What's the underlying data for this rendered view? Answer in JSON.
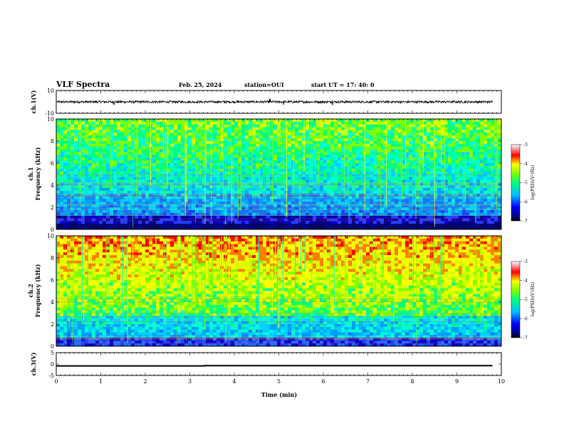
{
  "header": {
    "title": "VLF Spectra",
    "date": "Feb. 25, 2024",
    "station": "station=OUI",
    "start_ut": "start  UT  =   17: 40: 0"
  },
  "chart_data": [
    {
      "id": "ch1_waveform",
      "type": "line",
      "ylabel": "ch.1(V)",
      "xlim": [
        0,
        10
      ],
      "ylim": [
        -10,
        10
      ],
      "yticks": [
        "10",
        "-10"
      ],
      "signal": {
        "mean": 0,
        "amplitude_approx": 2,
        "x_end": 9.8,
        "spike_times": [
          1.3,
          4.8,
          5.1,
          6.2
        ]
      }
    },
    {
      "id": "ch1_spectrogram",
      "type": "heatmap",
      "ylabel": "ch.1\nFrequency (kHz)",
      "xlim": [
        0,
        10
      ],
      "ylim": [
        0,
        10
      ],
      "yticks": [
        "0",
        "2",
        "4",
        "6",
        "8",
        "10"
      ],
      "colorbar": {
        "label": "log(PSD)(V²/Hz)",
        "range": [
          -7,
          -3
        ],
        "ticks": [
          "-3",
          "-4",
          "-5",
          "-6",
          "-7"
        ]
      }
    },
    {
      "id": "ch2_spectrogram",
      "type": "heatmap",
      "ylabel": "ch.2\nFrequency (kHz)",
      "xlim": [
        0,
        10
      ],
      "ylim": [
        0,
        10
      ],
      "yticks": [
        "0",
        "2",
        "4",
        "6",
        "8",
        "10"
      ],
      "colorbar": {
        "label": "log(PSD)(V²/Hz)",
        "range": [
          -7,
          -3
        ],
        "ticks": [
          "-3",
          "-4",
          "-5",
          "-6",
          "-7"
        ]
      }
    },
    {
      "id": "ch3_level",
      "type": "line",
      "ylabel": "ch.3(V)",
      "xlim": [
        0,
        10
      ],
      "ylim": [
        -5,
        5
      ],
      "yticks": [
        "5",
        "0",
        "-5"
      ],
      "x": [
        0,
        3.33,
        3.33,
        9.8
      ],
      "y": [
        -0.8,
        -0.8,
        -0.7,
        -0.7
      ],
      "xlabel": "Time  (min)",
      "xticks": [
        "0",
        "1",
        "2",
        "3",
        "4",
        "5",
        "6",
        "7",
        "8",
        "9",
        "10"
      ]
    }
  ]
}
